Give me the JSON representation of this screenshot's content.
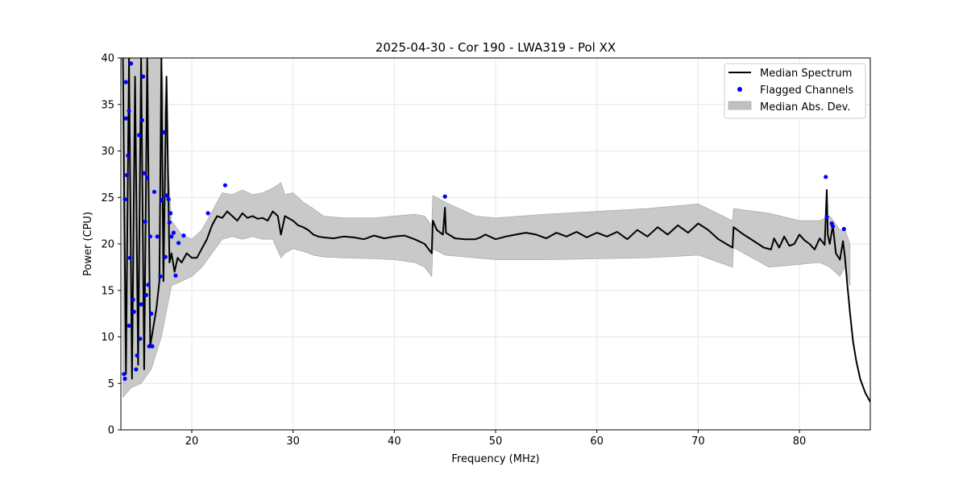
{
  "chart_data": {
    "type": "line",
    "title": "2025-04-30 - Cor 190 - LWA319 - Pol XX",
    "xlabel": "Frequency (MHz)",
    "ylabel": "Power (CPU)",
    "xlim": [
      13.0,
      87.0
    ],
    "ylim": [
      0,
      40
    ],
    "xticks": [
      20,
      30,
      40,
      50,
      60,
      70,
      80
    ],
    "yticks": [
      0,
      5,
      10,
      15,
      20,
      25,
      30,
      35,
      40
    ],
    "grid": true,
    "legend_position": "top-right",
    "legend": [
      "Median Spectrum",
      "Flagged Channels",
      "Median Abs. Dev."
    ],
    "series": [
      {
        "name": "Median Spectrum",
        "kind": "line",
        "color": "#000000",
        "x": [
          13.2,
          13.5,
          13.8,
          14.1,
          14.4,
          14.7,
          15.0,
          15.3,
          15.6,
          15.9,
          16.2,
          16.5,
          16.8,
          17.0,
          17.2,
          17.5,
          17.8,
          18.0,
          18.3,
          18.6,
          19.0,
          19.5,
          20.0,
          20.5,
          21.0,
          21.5,
          22.0,
          22.5,
          23.0,
          23.5,
          24.0,
          24.5,
          25.0,
          25.5,
          26.0,
          26.5,
          27.0,
          27.5,
          28.0,
          28.5,
          28.8,
          29.2,
          29.5,
          30.0,
          30.5,
          31.0,
          31.5,
          32.0,
          32.5,
          33.0,
          34.0,
          35.0,
          36.0,
          37.0,
          38.0,
          39.0,
          40.0,
          41.0,
          42.0,
          43.0,
          43.7,
          43.8,
          44.2,
          44.8,
          45.0,
          45.1,
          46.0,
          47.0,
          48.0,
          48.5,
          49.0,
          50.0,
          51.0,
          52.0,
          53.0,
          54.0,
          55.0,
          56.0,
          57.0,
          58.0,
          59.0,
          60.0,
          61.0,
          62.0,
          63.0,
          64.0,
          65.0,
          66.0,
          67.0,
          68.0,
          69.0,
          70.0,
          71.0,
          72.0,
          73.4,
          73.5,
          74.5,
          75.5,
          76.5,
          77.2,
          77.5,
          78.0,
          78.5,
          79.0,
          79.5,
          80.0,
          80.5,
          81.0,
          81.5,
          82.0,
          82.5,
          82.7,
          82.8,
          83.0,
          83.3,
          83.6,
          84.0,
          84.3,
          84.5,
          84.7,
          85.0,
          85.3,
          85.6,
          86.0,
          86.5,
          87.0
        ],
        "y": [
          40.0,
          6.0,
          40.0,
          5.5,
          38.0,
          7.0,
          40.0,
          6.5,
          40.0,
          9.0,
          11.0,
          13.0,
          16.0,
          40.0,
          16.0,
          38.0,
          18.0,
          19.0,
          17.0,
          18.5,
          18.0,
          19.0,
          18.5,
          18.5,
          19.5,
          20.5,
          22.0,
          23.0,
          22.8,
          23.5,
          23.0,
          22.5,
          23.3,
          22.8,
          23.0,
          22.7,
          22.8,
          22.5,
          23.5,
          23.0,
          21.0,
          23.0,
          22.8,
          22.5,
          22.0,
          21.8,
          21.5,
          21.0,
          20.8,
          20.7,
          20.6,
          20.8,
          20.7,
          20.5,
          20.9,
          20.6,
          20.8,
          20.9,
          20.5,
          20.0,
          19.0,
          22.5,
          21.5,
          21.0,
          23.9,
          21.2,
          20.6,
          20.5,
          20.5,
          20.7,
          21.0,
          20.5,
          20.8,
          21.0,
          21.2,
          21.0,
          20.6,
          21.2,
          20.8,
          21.3,
          20.7,
          21.2,
          20.8,
          21.3,
          20.5,
          21.5,
          20.8,
          21.8,
          21.0,
          22.0,
          21.2,
          22.2,
          21.5,
          20.5,
          19.6,
          21.8,
          21.0,
          20.3,
          19.6,
          19.4,
          20.6,
          19.6,
          20.8,
          19.8,
          20.0,
          21.0,
          20.4,
          20.0,
          19.4,
          20.6,
          19.9,
          25.8,
          21.0,
          20.0,
          22.0,
          19.0,
          18.3,
          20.3,
          18.5,
          16.0,
          12.5,
          9.5,
          7.5,
          5.5,
          4.0,
          3.0
        ]
      },
      {
        "name": "Flagged Channels",
        "kind": "scatter",
        "color": "#0000ff",
        "x": [
          13.3,
          13.4,
          13.4,
          13.5,
          13.5,
          13.6,
          13.7,
          13.8,
          13.8,
          13.9,
          14.0,
          14.2,
          14.3,
          14.5,
          14.6,
          14.8,
          14.9,
          15.0,
          15.1,
          15.2,
          15.3,
          15.4,
          15.5,
          15.6,
          15.7,
          15.8,
          15.9,
          16.0,
          16.1,
          16.3,
          16.6,
          16.9,
          17.0,
          17.2,
          17.4,
          17.5,
          17.7,
          17.8,
          17.9,
          18.0,
          18.2,
          18.4,
          18.7,
          19.2,
          21.6,
          23.3,
          45.0,
          82.6,
          82.7,
          83.2,
          83.3,
          84.4
        ],
        "y": [
          6.0,
          5.5,
          24.8,
          37.4,
          33.5,
          27.4,
          29.5,
          34.3,
          11.2,
          18.5,
          39.4,
          14.0,
          12.7,
          6.5,
          8.0,
          31.7,
          9.8,
          13.5,
          33.3,
          38.0,
          27.6,
          22.4,
          14.5,
          27.1,
          15.6,
          9.0,
          20.8,
          12.5,
          9.0,
          25.6,
          20.8,
          16.5,
          24.7,
          32.0,
          18.6,
          25.2,
          24.8,
          22.3,
          23.3,
          20.8,
          21.2,
          16.6,
          20.1,
          20.9,
          23.3,
          26.3,
          25.1,
          27.2,
          22.9,
          22.2,
          21.9,
          21.6
        ]
      },
      {
        "name": "Median Abs. Dev.",
        "kind": "band",
        "color": "#c0c0c0",
        "x": [
          13.2,
          14.0,
          15.0,
          16.0,
          17.0,
          18.0,
          19.0,
          20.0,
          21.0,
          22.0,
          23.0,
          24.0,
          25.0,
          26.0,
          27.0,
          28.0,
          28.8,
          29.2,
          30.0,
          31.0,
          32.0,
          33.0,
          35.0,
          38.0,
          40.0,
          42.0,
          43.0,
          43.7,
          43.8,
          45.0,
          48.0,
          50.0,
          55.0,
          60.0,
          65.0,
          70.0,
          73.4,
          73.5,
          77.0,
          80.0,
          82.0,
          83.0,
          84.0,
          84.5,
          85.0
        ],
        "lower": [
          3.5,
          4.5,
          5.0,
          6.5,
          10.0,
          15.5,
          16.0,
          16.5,
          17.5,
          19.0,
          20.5,
          20.8,
          20.5,
          20.8,
          20.5,
          20.5,
          18.5,
          19.0,
          19.5,
          19.2,
          18.8,
          18.6,
          18.5,
          18.4,
          18.3,
          18.0,
          17.5,
          16.5,
          19.5,
          18.8,
          18.5,
          18.3,
          18.3,
          18.4,
          18.5,
          18.8,
          17.5,
          19.6,
          17.5,
          17.8,
          18.0,
          17.5,
          16.5,
          17.5,
          15.5
        ],
        "upper": [
          40.0,
          40.0,
          40.0,
          40.0,
          40.0,
          22.5,
          21.0,
          20.5,
          21.5,
          23.5,
          25.5,
          25.3,
          25.8,
          25.3,
          25.5,
          26.0,
          26.6,
          25.3,
          25.5,
          24.5,
          23.8,
          23.0,
          22.8,
          22.8,
          23.0,
          23.2,
          23.0,
          22.0,
          25.2,
          24.5,
          23.0,
          22.8,
          23.2,
          23.5,
          23.8,
          24.3,
          22.5,
          23.8,
          23.3,
          22.5,
          22.5,
          23.0,
          21.5,
          21.5,
          20.0
        ]
      }
    ]
  }
}
